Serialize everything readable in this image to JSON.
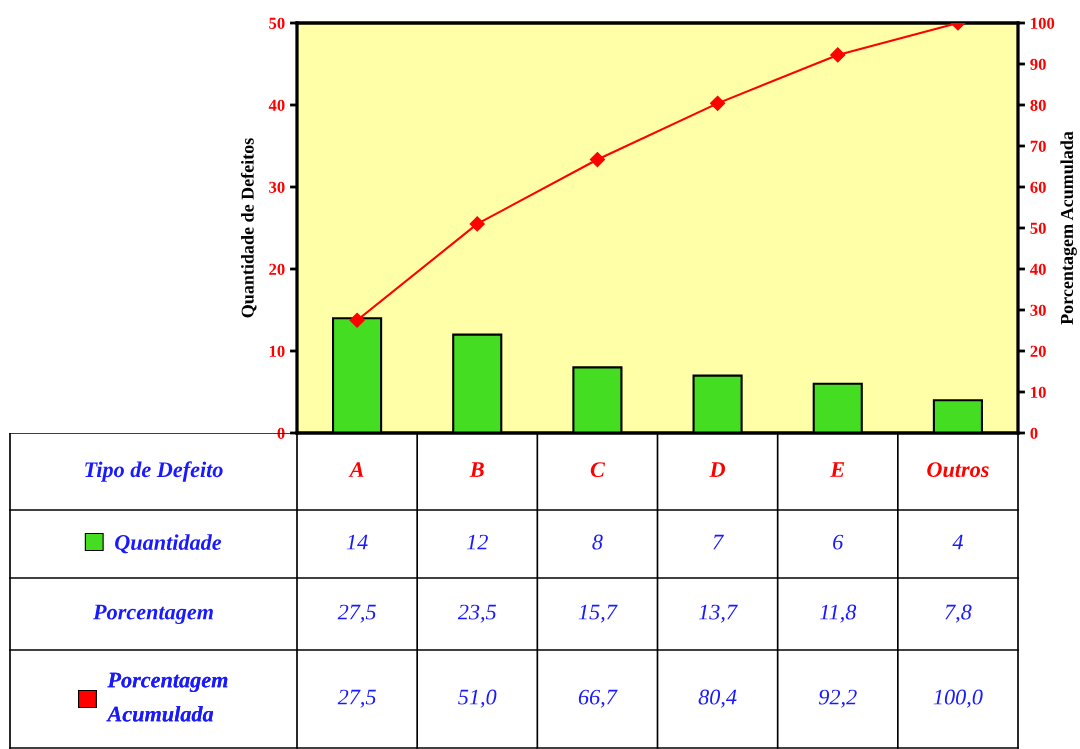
{
  "chart_data": {
    "type": "bar",
    "xlabel": "Tipo de Defeito",
    "ylabel": "Quantidade de Defeitos",
    "y2label": "Porcentagem Acumulada",
    "categories": [
      "A",
      "B",
      "C",
      "D",
      "E",
      "Outros"
    ],
    "series": [
      {
        "name": "Quantidade",
        "color": "#44dd22",
        "values": [
          14,
          12,
          8,
          7,
          6,
          4
        ],
        "value_labels": [
          "14",
          "12",
          "8",
          "7",
          "6",
          "4"
        ]
      },
      {
        "name": "Porcentagem Acumulada",
        "type": "line",
        "axis": "y2",
        "color": "#ff0000",
        "marker": "diamond",
        "values": [
          27.5,
          51.0,
          66.7,
          80.4,
          92.2,
          100.0
        ],
        "value_labels": [
          "27,5",
          "51,0",
          "66,7",
          "80,4",
          "92,2",
          "100,0"
        ]
      }
    ],
    "annotations": [
      "Porcentagem",
      "27,5",
      "23,5",
      "15,7",
      "13,7",
      "11,8",
      "7,8"
    ],
    "ylim": [
      0,
      50
    ],
    "yticks": [
      0,
      10,
      20,
      30,
      40,
      50
    ],
    "y2lim": [
      0,
      100
    ],
    "y2ticks": [
      0,
      10,
      20,
      30,
      40,
      50,
      60,
      70,
      80,
      90,
      100
    ],
    "grid": false,
    "legend": "bottom left"
  }
}
